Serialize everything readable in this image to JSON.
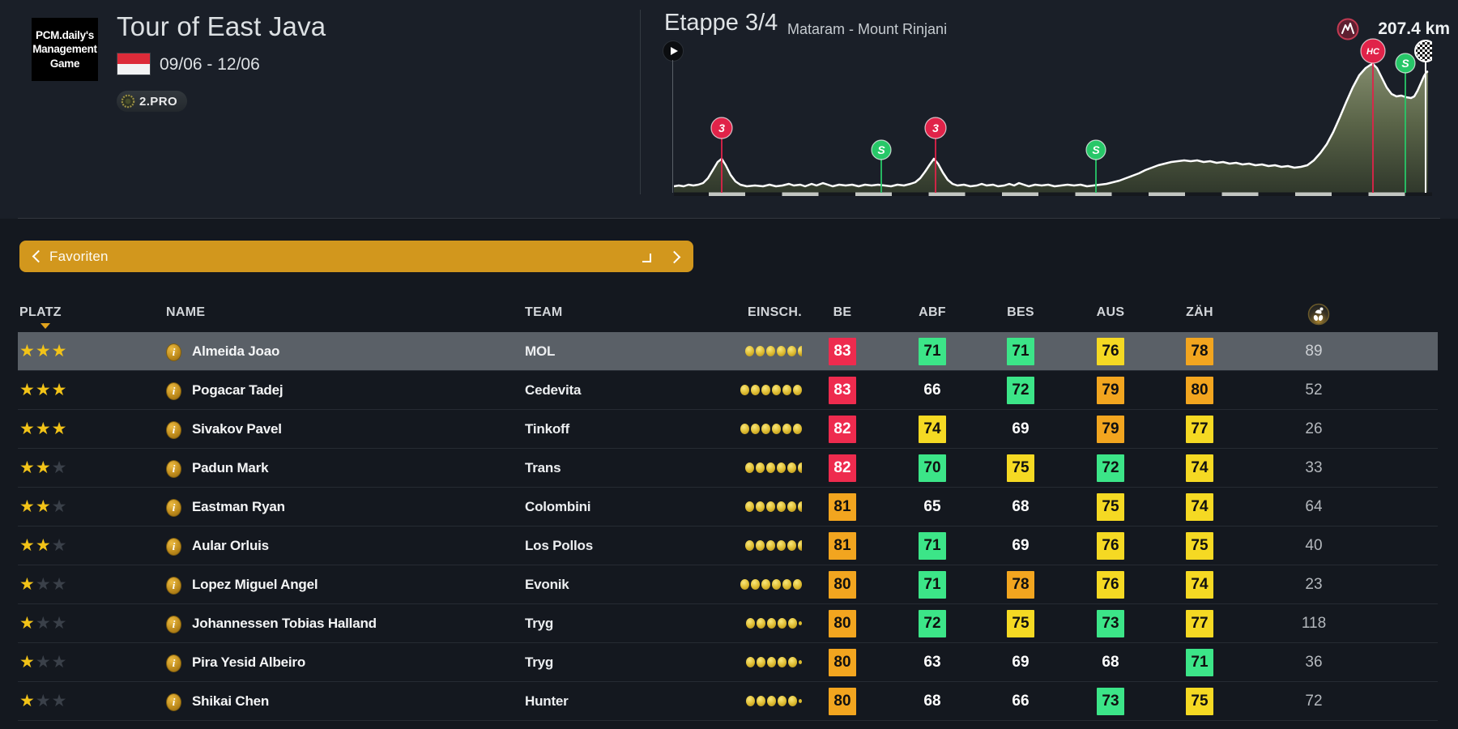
{
  "header": {
    "logo": {
      "lines": [
        "PCM.daily's",
        "Management",
        "Game"
      ]
    },
    "race": {
      "title": "Tour of East Java",
      "dates": "09/06 - 12/06",
      "category": "2.PRO",
      "flag": "indonesia-flag"
    },
    "stage": {
      "title": "Etappe 3/4",
      "route": "Mataram - Mount Rinjani",
      "distance": "207.4 km",
      "markers": [
        {
          "type": "cat3",
          "label": "3"
        },
        {
          "type": "sprint",
          "label": "S"
        },
        {
          "type": "cat3",
          "label": "3"
        },
        {
          "type": "sprint",
          "label": "S"
        },
        {
          "type": "hc",
          "label": "HC"
        },
        {
          "type": "sprint",
          "label": "S"
        },
        {
          "type": "finish",
          "label": ""
        }
      ]
    }
  },
  "nav": {
    "label": "Favoriten"
  },
  "table": {
    "columns": [
      "PLATZ",
      "NAME",
      "TEAM",
      "EINSCH.",
      "BE",
      "ABF",
      "BES",
      "AUS",
      "ZÄH"
    ],
    "rows": [
      {
        "selected": true,
        "stars": 3,
        "name": "Almeida Joao",
        "team": "MOL",
        "einsch": 5.5,
        "be": {
          "v": 83,
          "c": "r"
        },
        "abf": {
          "v": 71,
          "c": "g"
        },
        "bes": {
          "v": 71,
          "c": "g"
        },
        "aus": {
          "v": 76,
          "c": "y"
        },
        "zah": {
          "v": 78,
          "c": "o"
        },
        "pts": 89
      },
      {
        "selected": false,
        "stars": 3,
        "name": "Pogacar Tadej",
        "team": "Cedevita",
        "einsch": 6,
        "be": {
          "v": 83,
          "c": "r"
        },
        "abf": {
          "v": 66,
          "c": "n"
        },
        "bes": {
          "v": 72,
          "c": "g"
        },
        "aus": {
          "v": 79,
          "c": "o"
        },
        "zah": {
          "v": 80,
          "c": "o"
        },
        "pts": 52
      },
      {
        "selected": false,
        "stars": 3,
        "name": "Sivakov Pavel",
        "team": "Tinkoff",
        "einsch": 6,
        "be": {
          "v": 82,
          "c": "r"
        },
        "abf": {
          "v": 74,
          "c": "y"
        },
        "bes": {
          "v": 69,
          "c": "n"
        },
        "aus": {
          "v": 79,
          "c": "o"
        },
        "zah": {
          "v": 77,
          "c": "y"
        },
        "pts": 26
      },
      {
        "selected": false,
        "stars": 2,
        "name": "Padun Mark",
        "team": "Trans",
        "einsch": 5.5,
        "be": {
          "v": 82,
          "c": "r"
        },
        "abf": {
          "v": 70,
          "c": "g"
        },
        "bes": {
          "v": 75,
          "c": "y"
        },
        "aus": {
          "v": 72,
          "c": "g"
        },
        "zah": {
          "v": 74,
          "c": "y"
        },
        "pts": 33
      },
      {
        "selected": false,
        "stars": 2,
        "name": "Eastman Ryan",
        "team": "Colombini",
        "einsch": 5.5,
        "be": {
          "v": 81,
          "c": "o"
        },
        "abf": {
          "v": 65,
          "c": "n"
        },
        "bes": {
          "v": 68,
          "c": "n"
        },
        "aus": {
          "v": 75,
          "c": "y"
        },
        "zah": {
          "v": 74,
          "c": "y"
        },
        "pts": 64
      },
      {
        "selected": false,
        "stars": 2,
        "name": "Aular Orluis",
        "team": "Los Pollos",
        "einsch": 5.5,
        "be": {
          "v": 81,
          "c": "o"
        },
        "abf": {
          "v": 71,
          "c": "g"
        },
        "bes": {
          "v": 69,
          "c": "n"
        },
        "aus": {
          "v": 76,
          "c": "y"
        },
        "zah": {
          "v": 75,
          "c": "y"
        },
        "pts": 40
      },
      {
        "selected": false,
        "stars": 1,
        "name": "Lopez Miguel Angel",
        "team": "Evonik",
        "einsch": 6,
        "be": {
          "v": 80,
          "c": "o"
        },
        "abf": {
          "v": 71,
          "c": "g"
        },
        "bes": {
          "v": 78,
          "c": "o"
        },
        "aus": {
          "v": 76,
          "c": "y"
        },
        "zah": {
          "v": 74,
          "c": "y"
        },
        "pts": 23
      },
      {
        "selected": false,
        "stars": 1,
        "name": "Johannessen Tobias Halland",
        "team": "Tryg",
        "einsch": 5.25,
        "be": {
          "v": 80,
          "c": "o"
        },
        "abf": {
          "v": 72,
          "c": "g"
        },
        "bes": {
          "v": 75,
          "c": "y"
        },
        "aus": {
          "v": 73,
          "c": "g"
        },
        "zah": {
          "v": 77,
          "c": "y"
        },
        "pts": 118
      },
      {
        "selected": false,
        "stars": 1,
        "name": "Pira Yesid Albeiro",
        "team": "Tryg",
        "einsch": 5.25,
        "be": {
          "v": 80,
          "c": "o"
        },
        "abf": {
          "v": 63,
          "c": "n"
        },
        "bes": {
          "v": 69,
          "c": "n"
        },
        "aus": {
          "v": 68,
          "c": "n"
        },
        "zah": {
          "v": 71,
          "c": "g"
        },
        "pts": 36
      },
      {
        "selected": false,
        "stars": 1,
        "name": "Shikai Chen",
        "team": "Hunter",
        "einsch": 5.25,
        "be": {
          "v": 80,
          "c": "o"
        },
        "abf": {
          "v": 68,
          "c": "n"
        },
        "bes": {
          "v": 66,
          "c": "n"
        },
        "aus": {
          "v": 73,
          "c": "g"
        },
        "zah": {
          "v": 75,
          "c": "y"
        },
        "pts": 72
      }
    ]
  },
  "colors": {
    "accent_gold": "#d2971d",
    "badge_red": "#ee2b4e",
    "badge_orange": "#f2a51f",
    "badge_yellow": "#f5d923",
    "badge_green": "#3ce588",
    "star_gold": "#f2c318",
    "marker_climb": "#e02349",
    "marker_sprint": "#27c768",
    "selected_row": "#5a6067",
    "flag_red": "#dc2b39"
  }
}
